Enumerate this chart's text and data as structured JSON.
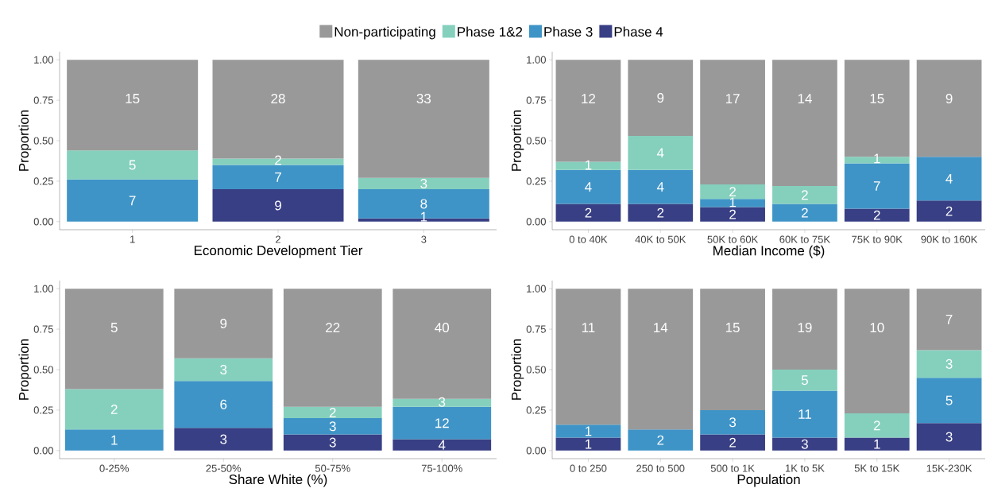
{
  "chart_data": [
    {
      "type": "bar",
      "stacked": true,
      "legend": "top",
      "xlabel": "Economic Development Tier",
      "ylabel": "Proportion",
      "categories": [
        "1",
        "2",
        "3"
      ],
      "ylim": [
        -0.05,
        1.05
      ],
      "yticks": [
        {
          "value": 0,
          "label": "0.00"
        },
        {
          "value": 0.25,
          "label": "0.25"
        },
        {
          "value": 0.5,
          "label": "0.50"
        },
        {
          "value": 0.75,
          "label": "0.75"
        },
        {
          "value": 1,
          "label": "1.00"
        }
      ],
      "series": [
        {
          "name": "Phase 4",
          "color": "#383f84",
          "values": [
            null,
            0.2,
            0.02
          ]
        },
        {
          "name": "Phase 3",
          "color": "#3f94c7",
          "values": [
            0.26,
            0.15,
            0.18
          ]
        },
        {
          "name": "Phase 1&2",
          "color": "#85d0bd",
          "values": [
            0.18,
            0.04,
            0.07
          ]
        },
        {
          "name": "Non-participating",
          "color": "#999999",
          "values": [
            0.56,
            0.61,
            0.73
          ]
        }
      ],
      "annotations": [
        {
          "text": "7",
          "x": "1",
          "y": 0.26
        },
        {
          "text": "5",
          "x": "1",
          "y": 0.44
        },
        {
          "text": "15",
          "x": "1",
          "y": 1
        },
        {
          "text": "9",
          "x": "2",
          "y": 0.2
        },
        {
          "text": "7",
          "x": "2",
          "y": 0.35
        },
        {
          "text": "2",
          "x": "2",
          "y": 0.39
        },
        {
          "text": "28",
          "x": "2",
          "y": 1
        },
        {
          "text": "1",
          "x": "3",
          "y": 0.02
        },
        {
          "text": "8",
          "x": "3",
          "y": 0.2
        },
        {
          "text": "3",
          "x": "3",
          "y": 0.27
        },
        {
          "text": "33",
          "x": "3",
          "y": 1
        }
      ]
    },
    {
      "type": "bar",
      "stacked": true,
      "xlabel": "Median Income ($)",
      "ylabel": "Proportion",
      "categories": [
        "0 to 40K",
        "40K to 50K",
        "50K to 60K",
        "60K to 75K",
        "75K to 90K",
        "90K to 160K"
      ],
      "ylim": [
        -0.05,
        1.05
      ],
      "yticks": [
        {
          "value": 0,
          "label": "0.00"
        },
        {
          "value": 0.25,
          "label": "0.25"
        },
        {
          "value": 0.5,
          "label": "0.50"
        },
        {
          "value": 0.75,
          "label": "0.75"
        },
        {
          "value": 1,
          "label": "1.00"
        }
      ],
      "series": [
        {
          "color": "#383f84",
          "values": [
            0.11,
            0.11,
            0.09,
            null,
            0.08,
            0.13
          ]
        },
        {
          "color": "#3f94c7",
          "values": [
            0.21,
            0.21,
            0.05,
            0.11,
            0.28,
            0.27
          ]
        },
        {
          "color": "#85d0bd",
          "values": [
            0.05,
            0.21,
            0.09,
            0.11,
            0.04,
            null
          ]
        },
        {
          "color": "#999999",
          "values": [
            0.63,
            0.47,
            0.77,
            0.78,
            0.6,
            0.6
          ]
        }
      ],
      "annotations": [
        {
          "text": "2",
          "x": "0 to 40K",
          "y": 0.11
        },
        {
          "text": "4",
          "x": "0 to 40K",
          "y": 0.32
        },
        {
          "text": "1",
          "x": "0 to 40K",
          "y": 0.37
        },
        {
          "text": "12",
          "x": "0 to 40K",
          "y": 1
        },
        {
          "text": "2",
          "x": "40K to 50K",
          "y": 0.11
        },
        {
          "text": "4",
          "x": "40K to 50K",
          "y": 0.32
        },
        {
          "text": "4",
          "x": "40K to 50K",
          "y": 0.53
        },
        {
          "text": "9",
          "x": "40K to 50K",
          "y": 1
        },
        {
          "text": "2",
          "x": "50K to 60K",
          "y": 0.09
        },
        {
          "text": "1",
          "x": "50K to 60K",
          "y": 0.14
        },
        {
          "text": "2",
          "x": "50K to 60K",
          "y": 0.23
        },
        {
          "text": "17",
          "x": "50K to 60K",
          "y": 1
        },
        {
          "text": "2",
          "x": "60K to 75K",
          "y": 0.11
        },
        {
          "text": "2",
          "x": "60K to 75K",
          "y": 0.22
        },
        {
          "text": "14",
          "x": "60K to 75K",
          "y": 1
        },
        {
          "text": "2",
          "x": "75K to 90K",
          "y": 0.08
        },
        {
          "text": "7",
          "x": "75K to 90K",
          "y": 0.36
        },
        {
          "text": "1",
          "x": "75K to 90K",
          "y": 0.4
        },
        {
          "text": "15",
          "x": "75K to 90K",
          "y": 1
        },
        {
          "text": "2",
          "x": "90K to 160K",
          "y": 0.13
        },
        {
          "text": "4",
          "x": "90K to 160K",
          "y": 0.4
        },
        {
          "text": "9",
          "x": "90K to 160K",
          "y": 1
        }
      ]
    },
    {
      "type": "bar",
      "stacked": true,
      "xlabel": "Share White (%)",
      "ylabel": "Proportion",
      "categories": [
        "0-25%",
        "25-50%",
        "50-75%",
        "75-100%"
      ],
      "ylim": [
        -0.05,
        1.05
      ],
      "yticks": [
        {
          "value": 0,
          "label": "0.00"
        },
        {
          "value": 0.25,
          "label": "0.25"
        },
        {
          "value": 0.5,
          "label": "0.50"
        },
        {
          "value": 0.75,
          "label": "0.75"
        },
        {
          "value": 1,
          "label": "1.00"
        }
      ],
      "series": [
        {
          "color": "#383f84",
          "values": [
            null,
            0.14,
            0.1,
            0.07
          ]
        },
        {
          "color": "#3f94c7",
          "values": [
            0.13,
            0.29,
            0.1,
            0.2
          ]
        },
        {
          "color": "#85d0bd",
          "values": [
            0.25,
            0.14,
            0.07,
            0.05
          ]
        },
        {
          "color": "#999999",
          "values": [
            0.62,
            0.43,
            0.73,
            0.68
          ]
        }
      ],
      "annotations": [
        {
          "text": "1",
          "x": "0-25%",
          "y": 0.13
        },
        {
          "text": "2",
          "x": "0-25%",
          "y": 0.38
        },
        {
          "text": "5",
          "x": "0-25%",
          "y": 1
        },
        {
          "text": "3",
          "x": "25-50%",
          "y": 0.14
        },
        {
          "text": "6",
          "x": "25-50%",
          "y": 0.43
        },
        {
          "text": "3",
          "x": "25-50%",
          "y": 0.57
        },
        {
          "text": "9",
          "x": "25-50%",
          "y": 1
        },
        {
          "text": "3",
          "x": "50-75%",
          "y": 0.1
        },
        {
          "text": "3",
          "x": "50-75%",
          "y": 0.2
        },
        {
          "text": "2",
          "x": "50-75%",
          "y": 0.27
        },
        {
          "text": "22",
          "x": "50-75%",
          "y": 1
        },
        {
          "text": "4",
          "x": "75-100%",
          "y": 0.07
        },
        {
          "text": "12",
          "x": "75-100%",
          "y": 0.27
        },
        {
          "text": "3",
          "x": "75-100%",
          "y": 0.32
        },
        {
          "text": "40",
          "x": "75-100%",
          "y": 1
        }
      ]
    },
    {
      "type": "bar",
      "stacked": true,
      "xlabel": "Population",
      "ylabel": "Proportion",
      "categories": [
        "0 to 250",
        "250 to 500",
        "500 to 1K",
        "1K to 5K",
        "5K to 15K",
        "15K-230K"
      ],
      "ylim": [
        -0.05,
        1.05
      ],
      "yticks": [
        {
          "value": 0,
          "label": "0.00"
        },
        {
          "value": 0.25,
          "label": "0.25"
        },
        {
          "value": 0.5,
          "label": "0.50"
        },
        {
          "value": 0.75,
          "label": "0.75"
        },
        {
          "value": 1,
          "label": "1.00"
        }
      ],
      "series": [
        {
          "color": "#383f84",
          "values": [
            0.08,
            null,
            0.1,
            0.08,
            0.08,
            0.17
          ]
        },
        {
          "color": "#3f94c7",
          "values": [
            0.08,
            0.13,
            0.15,
            0.29,
            null,
            0.28
          ]
        },
        {
          "color": "#85d0bd",
          "values": [
            null,
            null,
            null,
            0.13,
            0.15,
            0.17
          ]
        },
        {
          "color": "#999999",
          "values": [
            0.84,
            0.87,
            0.75,
            0.5,
            0.77,
            0.38
          ]
        }
      ],
      "annotations": [
        {
          "text": "1",
          "x": "0 to 250",
          "y": 0.08
        },
        {
          "text": "1",
          "x": "0 to 250",
          "y": 0.16
        },
        {
          "text": "11",
          "x": "0 to 250",
          "y": 1
        },
        {
          "text": "2",
          "x": "250 to 500",
          "y": 0.13
        },
        {
          "text": "14",
          "x": "250 to 500",
          "y": 1
        },
        {
          "text": "2",
          "x": "500 to 1K",
          "y": 0.1
        },
        {
          "text": "3",
          "x": "500 to 1K",
          "y": 0.25
        },
        {
          "text": "15",
          "x": "500 to 1K",
          "y": 1
        },
        {
          "text": "3",
          "x": "1K to 5K",
          "y": 0.08
        },
        {
          "text": "11",
          "x": "1K to 5K",
          "y": 0.37
        },
        {
          "text": "5",
          "x": "1K to 5K",
          "y": 0.5
        },
        {
          "text": "19",
          "x": "1K to 5K",
          "y": 1
        },
        {
          "text": "1",
          "x": "5K to 15K",
          "y": 0.08
        },
        {
          "text": "2",
          "x": "5K to 15K",
          "y": 0.23
        },
        {
          "text": "10",
          "x": "5K to 15K",
          "y": 1
        },
        {
          "text": "3",
          "x": "15K-230K",
          "y": 0.17
        },
        {
          "text": "5",
          "x": "15K-230K",
          "y": 0.45
        },
        {
          "text": "3",
          "x": "15K-230K",
          "y": 0.62
        },
        {
          "text": "7",
          "x": "15K-230K",
          "y": 1
        }
      ]
    }
  ]
}
